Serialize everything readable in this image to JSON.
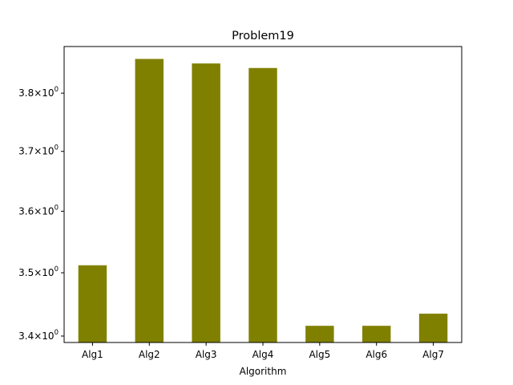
{
  "chart_data": {
    "type": "bar",
    "title": "Problem19",
    "xlabel": "Algorithm",
    "ylabel": "",
    "yscale": "log",
    "categories": [
      "Alg1",
      "Alg2",
      "Alg3",
      "Alg4",
      "Alg5",
      "Alg6",
      "Alg7"
    ],
    "values": [
      3.512,
      3.86,
      3.852,
      3.844,
      3.416,
      3.416,
      3.435
    ],
    "ylim": [
      3.39,
      3.882
    ],
    "yticks": [
      {
        "value": 3.4,
        "mantissa": "3.4",
        "base": "10",
        "exp": "0"
      },
      {
        "value": 3.5,
        "mantissa": "3.5",
        "base": "10",
        "exp": "0"
      },
      {
        "value": 3.6,
        "mantissa": "3.6",
        "base": "10",
        "exp": "0"
      },
      {
        "value": 3.7,
        "mantissa": "3.7",
        "base": "10",
        "exp": "0"
      },
      {
        "value": 3.8,
        "mantissa": "3.8",
        "base": "10",
        "exp": "0"
      }
    ],
    "bar_color": "#808000",
    "grid": false,
    "legend": "none"
  }
}
